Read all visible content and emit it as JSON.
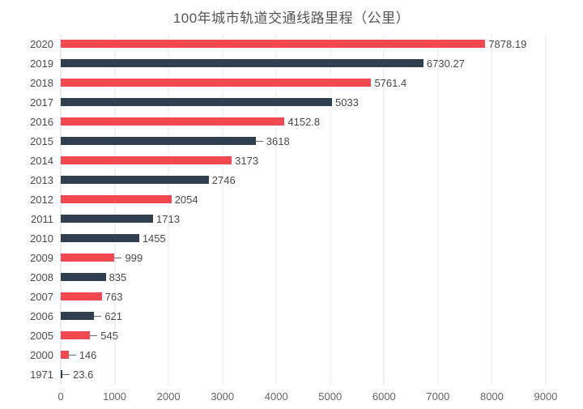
{
  "chart_data": {
    "type": "bar",
    "orientation": "horizontal",
    "title": "100年城市轨道交通线路里程（公里）",
    "xlabel": "",
    "ylabel": "",
    "xlim": [
      0,
      9000
    ],
    "x_ticks": [
      0,
      1000,
      2000,
      3000,
      4000,
      5000,
      6000,
      7000,
      8000,
      9000
    ],
    "grid": "vertical-only",
    "legend": "none",
    "categories": [
      "2020",
      "2019",
      "2018",
      "2017",
      "2016",
      "2015",
      "2014",
      "2013",
      "2012",
      "2011",
      "2010",
      "2009",
      "2008",
      "2007",
      "2006",
      "2005",
      "2000",
      "1971"
    ],
    "values": [
      7878.19,
      6730.27,
      5761.4,
      5033,
      4152.8,
      3618,
      3173,
      2746,
      2054,
      1713,
      1455,
      999,
      835,
      763,
      621,
      545,
      146,
      23.6
    ],
    "value_labels": [
      "7878.19",
      "6730.27",
      "5761.4",
      "5033",
      "4152.8",
      "3618",
      "3173",
      "2746",
      "2054",
      "1713",
      "1455",
      "999",
      "835",
      "763",
      "621",
      "545",
      "146",
      "23.6"
    ],
    "bar_color_keys": [
      "red",
      "navy",
      "red",
      "navy",
      "red",
      "navy",
      "red",
      "navy",
      "red",
      "navy",
      "navy",
      "red",
      "navy",
      "red",
      "navy",
      "red",
      "red",
      "navy"
    ],
    "leader_line": [
      false,
      false,
      false,
      false,
      false,
      true,
      false,
      false,
      false,
      false,
      false,
      true,
      false,
      false,
      true,
      true,
      true,
      true
    ],
    "colors": {
      "red": "#f1494f",
      "navy": "#2f3f4f",
      "gridline": "#e8e8e8",
      "axis_line": "#d9d9d9",
      "category_text": "#4d4d4d",
      "value_text": "#4a4a4a",
      "tick_text": "#666666",
      "title_text": "#555555",
      "leader": "#6b6b6b"
    }
  }
}
